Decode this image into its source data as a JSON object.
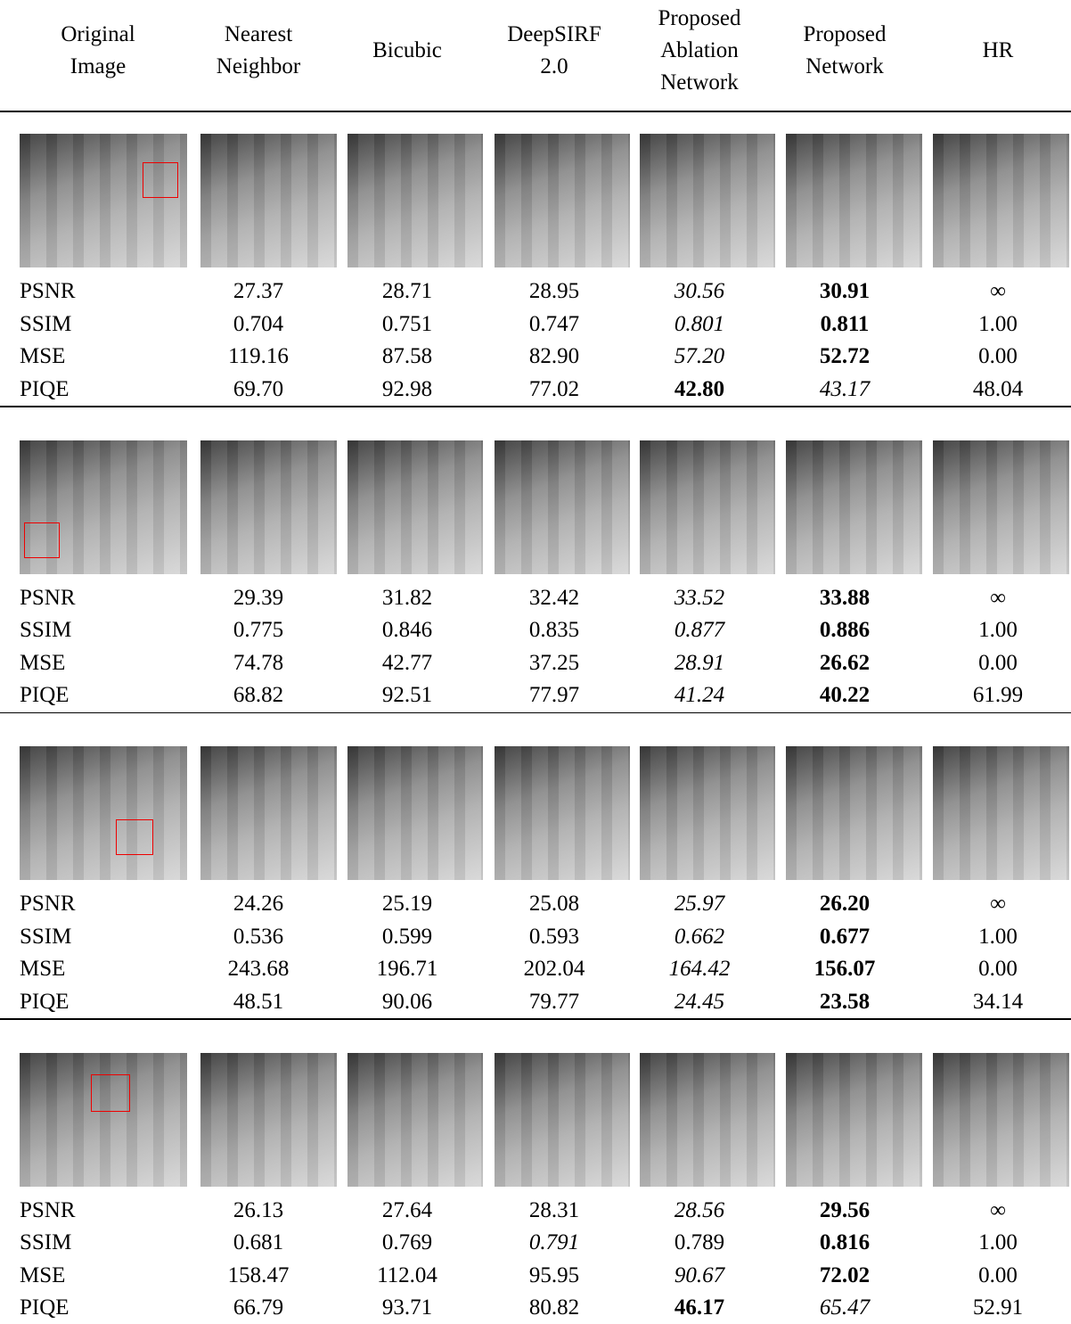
{
  "columns": [
    "Original\nImage",
    "Nearest\nNeighbor",
    "Bicubic",
    "DeepSIRF\n2.0",
    "Proposed\nAblation\nNetwork",
    "Proposed\nNetwork",
    "HR"
  ],
  "groups": [
    {
      "rows": [
        {
          "label": "PSNR",
          "values": [
            "27.37",
            "28.71",
            "28.95",
            "30.56",
            "30.91",
            "∞"
          ],
          "bold": [
            4
          ],
          "italic": [
            3
          ]
        },
        {
          "label": "SSIM",
          "values": [
            "0.704",
            "0.751",
            "0.747",
            "0.801",
            "0.811",
            "1.00"
          ],
          "bold": [
            4
          ],
          "italic": [
            3
          ]
        },
        {
          "label": "MSE",
          "values": [
            "119.16",
            "87.58",
            "82.90",
            "57.20",
            "52.72",
            "0.00"
          ],
          "bold": [
            4
          ],
          "italic": [
            3
          ]
        },
        {
          "label": "PIQE",
          "values": [
            "69.70",
            "92.98",
            "77.02",
            "42.80",
            "43.17",
            "48.04"
          ],
          "bold": [
            3
          ],
          "italic": [
            4
          ]
        }
      ]
    },
    {
      "rows": [
        {
          "label": "PSNR",
          "values": [
            "29.39",
            "31.82",
            "32.42",
            "33.52",
            "33.88",
            "∞"
          ],
          "bold": [
            4
          ],
          "italic": [
            3
          ]
        },
        {
          "label": "SSIM",
          "values": [
            "0.775",
            "0.846",
            "0.835",
            "0.877",
            "0.886",
            "1.00"
          ],
          "bold": [
            4
          ],
          "italic": [
            3
          ]
        },
        {
          "label": "MSE",
          "values": [
            "74.78",
            "42.77",
            "37.25",
            "28.91",
            "26.62",
            "0.00"
          ],
          "bold": [
            4
          ],
          "italic": [
            3
          ]
        },
        {
          "label": "PIQE",
          "values": [
            "68.82",
            "92.51",
            "77.97",
            "41.24",
            "40.22",
            "61.99"
          ],
          "bold": [
            4
          ],
          "italic": [
            3
          ]
        }
      ]
    },
    {
      "rows": [
        {
          "label": "PSNR",
          "values": [
            "24.26",
            "25.19",
            "25.08",
            "25.97",
            "26.20",
            "∞"
          ],
          "bold": [
            4
          ],
          "italic": [
            3
          ]
        },
        {
          "label": "SSIM",
          "values": [
            "0.536",
            "0.599",
            "0.593",
            "0.662",
            "0.677",
            "1.00"
          ],
          "bold": [
            4
          ],
          "italic": [
            3
          ]
        },
        {
          "label": "MSE",
          "values": [
            "243.68",
            "196.71",
            "202.04",
            "164.42",
            "156.07",
            "0.00"
          ],
          "bold": [
            4
          ],
          "italic": [
            3
          ]
        },
        {
          "label": "PIQE",
          "values": [
            "48.51",
            "90.06",
            "79.77",
            "24.45",
            "23.58",
            "34.14"
          ],
          "bold": [
            4
          ],
          "italic": [
            3
          ]
        }
      ]
    },
    {
      "rows": [
        {
          "label": "PSNR",
          "values": [
            "26.13",
            "27.64",
            "28.31",
            "28.56",
            "29.56",
            "∞"
          ],
          "bold": [
            4
          ],
          "italic": [
            3
          ]
        },
        {
          "label": "SSIM",
          "values": [
            "0.681",
            "0.769",
            "0.791",
            "0.789",
            "0.816",
            "1.00"
          ],
          "bold": [
            4
          ],
          "italic": [
            2
          ]
        },
        {
          "label": "MSE",
          "values": [
            "158.47",
            "112.04",
            "95.95",
            "90.67",
            "72.02",
            "0.00"
          ],
          "bold": [
            4
          ],
          "italic": [
            3
          ]
        },
        {
          "label": "PIQE",
          "values": [
            "66.79",
            "93.71",
            "80.82",
            "46.17",
            "65.47",
            "52.91"
          ],
          "bold": [
            3
          ],
          "italic": [
            4
          ]
        }
      ]
    }
  ]
}
